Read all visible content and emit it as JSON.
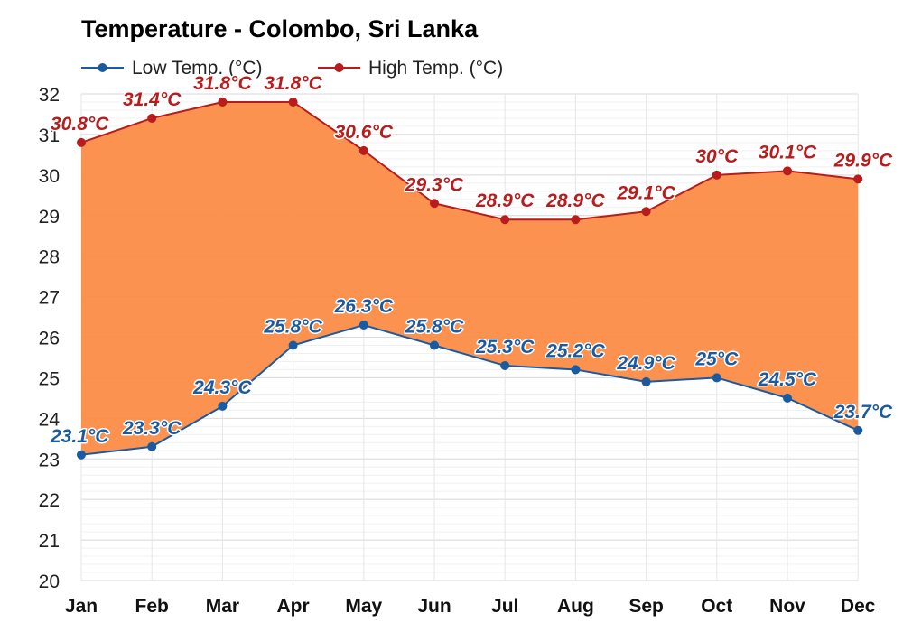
{
  "chart_data": {
    "type": "line",
    "title": "Temperature - Colombo, Sri Lanka",
    "categories": [
      "Jan",
      "Feb",
      "Mar",
      "Apr",
      "May",
      "Jun",
      "Jul",
      "Aug",
      "Sep",
      "Oct",
      "Nov",
      "Dec"
    ],
    "series": [
      {
        "name": "Low Temp. (°C)",
        "color": "#1a5aa0",
        "values": [
          23.1,
          23.3,
          24.3,
          25.8,
          26.3,
          25.8,
          25.3,
          25.2,
          24.9,
          25,
          24.5,
          23.7
        ],
        "labels": [
          "23.1°C",
          "23.3°C",
          "24.3°C",
          "25.8°C",
          "26.3°C",
          "25.8°C",
          "25.3°C",
          "25.2°C",
          "24.9°C",
          "25°C",
          "24.5°C",
          "23.7°C"
        ]
      },
      {
        "name": "High Temp. (°C)",
        "color": "#b81c1c",
        "values": [
          30.8,
          31.4,
          31.8,
          31.8,
          30.6,
          29.3,
          28.9,
          28.9,
          29.1,
          30,
          30.1,
          29.9
        ],
        "labels": [
          "30.8°C",
          "31.4°C",
          "31.8°C",
          "31.8°C",
          "30.6°C",
          "29.3°C",
          "28.9°C",
          "28.9°C",
          "29.1°C",
          "30°C",
          "30.1°C",
          "29.9°C"
        ]
      }
    ],
    "yticks": [
      "20",
      "21",
      "22",
      "23",
      "24",
      "25",
      "26",
      "27",
      "28",
      "29",
      "30",
      "31",
      "32"
    ],
    "ylim": [
      20,
      32
    ],
    "fill_color": "#fb8c47",
    "grid": true,
    "legend_position": "top-left"
  }
}
